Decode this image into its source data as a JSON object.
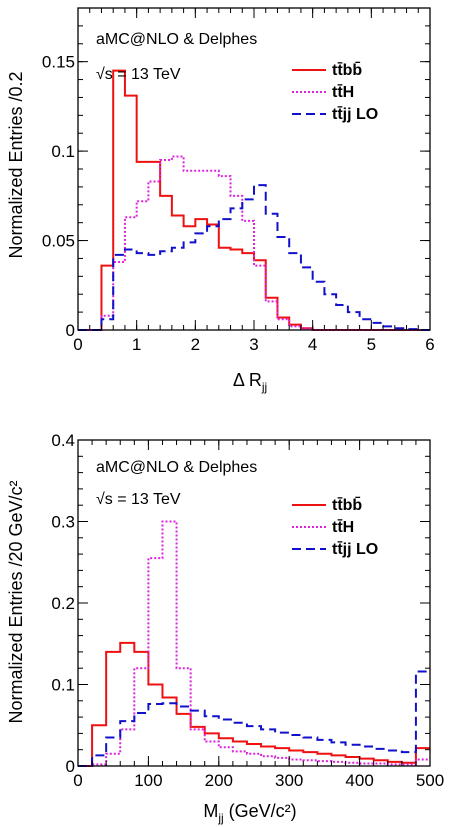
{
  "chart_data": [
    {
      "type": "line",
      "subtype": "step-histogram",
      "annotation": "aMC@NLO & Delphes",
      "energy": "√s = 13 TeV",
      "xlabel": "Δ R",
      "xlabel_sub": "jj",
      "ylabel": "Normalized Entries /0.2",
      "xlim": [
        0,
        6
      ],
      "ylim": [
        0,
        0.18
      ],
      "xticks": [
        0,
        1,
        2,
        3,
        4,
        5,
        6
      ],
      "xtick_labels": [
        "0",
        "1",
        "2",
        "3",
        "4",
        "5",
        "6"
      ],
      "yticks": [
        0,
        0.05,
        0.1,
        0.15
      ],
      "ytick_labels": [
        "0",
        "0.05",
        "0.1",
        "0.15"
      ],
      "xminor": 0.2,
      "yminor": 0.01,
      "bin_edges": [
        0,
        0.2,
        0.4,
        0.6,
        0.8,
        1.0,
        1.2,
        1.4,
        1.6,
        1.8,
        2.0,
        2.2,
        2.4,
        2.6,
        2.8,
        3.0,
        3.2,
        3.4,
        3.6,
        3.8,
        4.0,
        4.2,
        4.4,
        4.6,
        4.8,
        5.0,
        5.2,
        5.4,
        5.6,
        5.8,
        6.0
      ],
      "legend_position": "top-right",
      "series": [
        {
          "name": "tt̄bb̄",
          "color": "#ee1111",
          "style": "solid",
          "values": [
            0,
            0,
            0.036,
            0.145,
            0.131,
            0.094,
            0.094,
            0.075,
            0.064,
            0.058,
            0.062,
            0.059,
            0.046,
            0.045,
            0.043,
            0.039,
            0.018,
            0.007,
            0.003,
            0.001,
            0,
            0,
            0,
            0,
            0,
            0,
            0,
            0,
            0,
            0
          ]
        },
        {
          "name": "tt̄H",
          "color": "#dd22dd",
          "style": "dotted",
          "values": [
            0,
            0,
            0.008,
            0.038,
            0.063,
            0.072,
            0.083,
            0.095,
            0.097,
            0.089,
            0.089,
            0.089,
            0.086,
            0.075,
            0.061,
            0.036,
            0.016,
            0.006,
            0.002,
            0.001,
            0,
            0,
            0,
            0,
            0,
            0,
            0,
            0,
            0,
            0
          ]
        },
        {
          "name": "tt̄jj LO",
          "color": "#1111cc",
          "style": "dashed",
          "values": [
            0,
            0,
            0.006,
            0.042,
            0.045,
            0.043,
            0.042,
            0.044,
            0.046,
            0.049,
            0.054,
            0.058,
            0.062,
            0.068,
            0.073,
            0.081,
            0.065,
            0.052,
            0.043,
            0.035,
            0.027,
            0.02,
            0.014,
            0.01,
            0.006,
            0.004,
            0.002,
            0.001,
            0.0005,
            0
          ]
        }
      ]
    },
    {
      "type": "line",
      "subtype": "step-histogram",
      "annotation": "aMC@NLO & Delphes",
      "energy": "√s = 13 TeV",
      "xlabel": "M",
      "xlabel_sub": "jj",
      "xlabel_unit": "(GeV/c²)",
      "ylabel": "Normalized Entries /20 GeV/c²",
      "xlim": [
        0,
        500
      ],
      "ylim": [
        0,
        0.4
      ],
      "xticks": [
        0,
        100,
        200,
        300,
        400,
        500
      ],
      "xtick_labels": [
        "0",
        "100",
        "200",
        "300",
        "400",
        "500"
      ],
      "yticks": [
        0,
        0.1,
        0.2,
        0.3,
        0.4
      ],
      "ytick_labels": [
        "0",
        "0.1",
        "0.2",
        "0.3",
        "0.4"
      ],
      "xminor": 20,
      "yminor": 0.02,
      "bin_edges": [
        0,
        20,
        40,
        60,
        80,
        100,
        120,
        140,
        160,
        180,
        200,
        220,
        240,
        260,
        280,
        300,
        320,
        340,
        360,
        380,
        400,
        420,
        440,
        460,
        480,
        500
      ],
      "legend_position": "top-right",
      "series": [
        {
          "name": "tt̄bb̄",
          "color": "#ee1111",
          "style": "solid",
          "values": [
            0,
            0.05,
            0.14,
            0.151,
            0.14,
            0.1,
            0.084,
            0.064,
            0.048,
            0.04,
            0.034,
            0.03,
            0.027,
            0.024,
            0.022,
            0.019,
            0.017,
            0.015,
            0.013,
            0.011,
            0.009,
            0.007,
            0.005,
            0.004,
            0.022
          ]
        },
        {
          "name": "tt̄H",
          "color": "#dd22dd",
          "style": "dotted",
          "values": [
            0,
            0.002,
            0.015,
            0.045,
            0.12,
            0.255,
            0.3,
            0.12,
            0.045,
            0.03,
            0.023,
            0.018,
            0.015,
            0.012,
            0.01,
            0.008,
            0.007,
            0.006,
            0.005,
            0.004,
            0.003,
            0.003,
            0.002,
            0.002,
            0.008
          ]
        },
        {
          "name": "tt̄jj LO",
          "color": "#1111cc",
          "style": "dashed",
          "values": [
            0,
            0.013,
            0.035,
            0.055,
            0.065,
            0.076,
            0.077,
            0.073,
            0.068,
            0.061,
            0.057,
            0.053,
            0.049,
            0.045,
            0.041,
            0.038,
            0.035,
            0.032,
            0.029,
            0.026,
            0.024,
            0.021,
            0.019,
            0.017,
            0.116
          ]
        }
      ]
    }
  ]
}
